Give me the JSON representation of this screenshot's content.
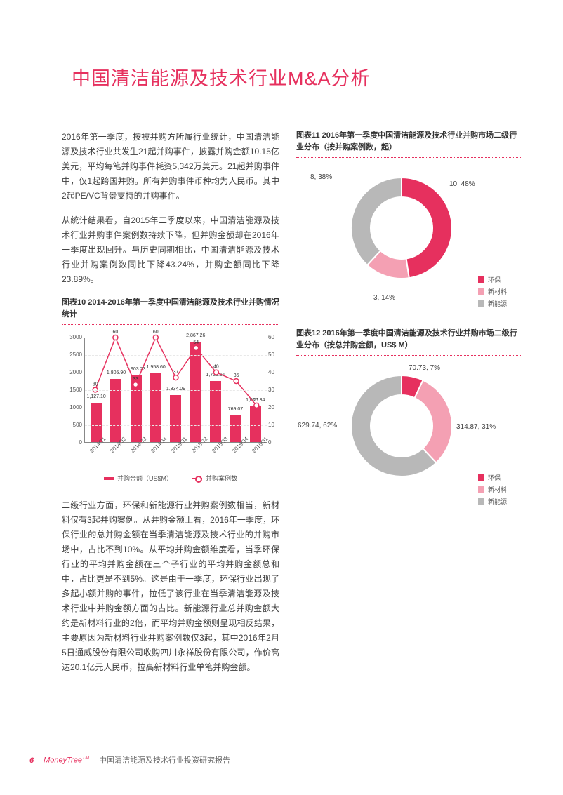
{
  "title": "中国清洁能源及技术行业M&A分析",
  "para1": "2016年第一季度，按被并购方所属行业统计，中国清洁能源及技术行业共发生21起并购事件，披露并购金额10.15亿美元，平均每笔并购事件耗资5,342万美元。21起并购事件中，仅1起跨国并购。所有并购事件币种均为人民币。其中2起PE/VC背景支持的并购事件。",
  "para2": "从统计结果看，自2015年二季度以来，中国清洁能源及技术行业并购事件案例数持续下降，但并购金额却在2016年一季度出现回升。与历史同期相比，中国清洁能源及技术行业并购案例数同比下降43.24%，并购金额同比下降23.89%。",
  "para3": "二级行业方面，环保和新能源行业并购案例数相当，新材料仅有3起并购案例。从并购金额上看，2016年一季度，环保行业的总并购金额在当季清洁能源及技术行业的并购市场中，占比不到10%。从平均并购金额维度看，当季环保行业的平均并购金额在三个子行业的平均并购金额总和中，占比更是不到5%。这是由于一季度，环保行业出现了多起小额并购的事件，拉低了该行业在当季清洁能源及技术行业中并购金额方面的占比。新能源行业总并购金额大约是新材料行业的2倍，而平均并购金额则呈现相反结果，主要原因为新材料行业并购案例数仅3起，其中2016年2月5日通威股份有限公司收购四川永祥股份有限公司，作价高达20.1亿元人民币，拉高新材料行业单笔并购金额。",
  "chart10": {
    "title": "图表10 2014-2016年第一季度中国清洁能源及技术行业并购情况统计",
    "type": "bar+line",
    "categories": [
      "2014Q1",
      "2014Q2",
      "2014Q3",
      "2014Q4",
      "2015Q1",
      "2015Q2",
      "2015Q3",
      "2015Q4",
      "2016Q1"
    ],
    "bar_values": [
      1127.1,
      1805.9,
      1903.23,
      1958.6,
      1334.09,
      2867.26,
      1735.51,
      769.07,
      1015.34
    ],
    "line_values": [
      30,
      60,
      33,
      60,
      37,
      54,
      40,
      35,
      21
    ],
    "bar_color": "#e6305e",
    "line_color": "#e6305e",
    "y_left_max": 3000,
    "y_left_step": 500,
    "y_right_max": 60,
    "y_right_step": 10,
    "legend_bar": "并购金额（US$M）",
    "legend_line": "并购案例数"
  },
  "chart11": {
    "title": "图表11 2016年第一季度中国清洁能源及技术行业并购市场二级行业分布（按并购案例数，起）",
    "type": "donut",
    "slices": [
      {
        "label": "环保",
        "value": 10,
        "pct": "48%",
        "color": "#e6305e",
        "callout": "10, 48%"
      },
      {
        "label": "新材料",
        "value": 3,
        "pct": "14%",
        "color": "#f4a0b3",
        "callout": "3, 14%"
      },
      {
        "label": "新能源",
        "value": 8,
        "pct": "38%",
        "color": "#b8b8b8",
        "callout": "8, 38%"
      }
    ]
  },
  "chart12": {
    "title": "图表12 2016年第一季度中国清洁能源及技术行业并购市场二级行业分布（按总并购金额，US$ M）",
    "type": "donut",
    "slices": [
      {
        "label": "环保",
        "value": 70.73,
        "pct": "7%",
        "color": "#e6305e",
        "callout": "70.73, 7%"
      },
      {
        "label": "新材料",
        "value": 314.87,
        "pct": "31%",
        "color": "#f4a0b3",
        "callout": "314.87, 31%"
      },
      {
        "label": "新能源",
        "value": 629.74,
        "pct": "62%",
        "color": "#b8b8b8",
        "callout": "629.74, 62%"
      }
    ]
  },
  "legend_labels": {
    "env": "环保",
    "mat": "新材料",
    "energy": "新能源"
  },
  "footer": {
    "page_num": "6",
    "brand": "MoneyTree",
    "brand_tm": "TM",
    "doctitle": "中国清洁能源及技术行业投资研究报告"
  }
}
